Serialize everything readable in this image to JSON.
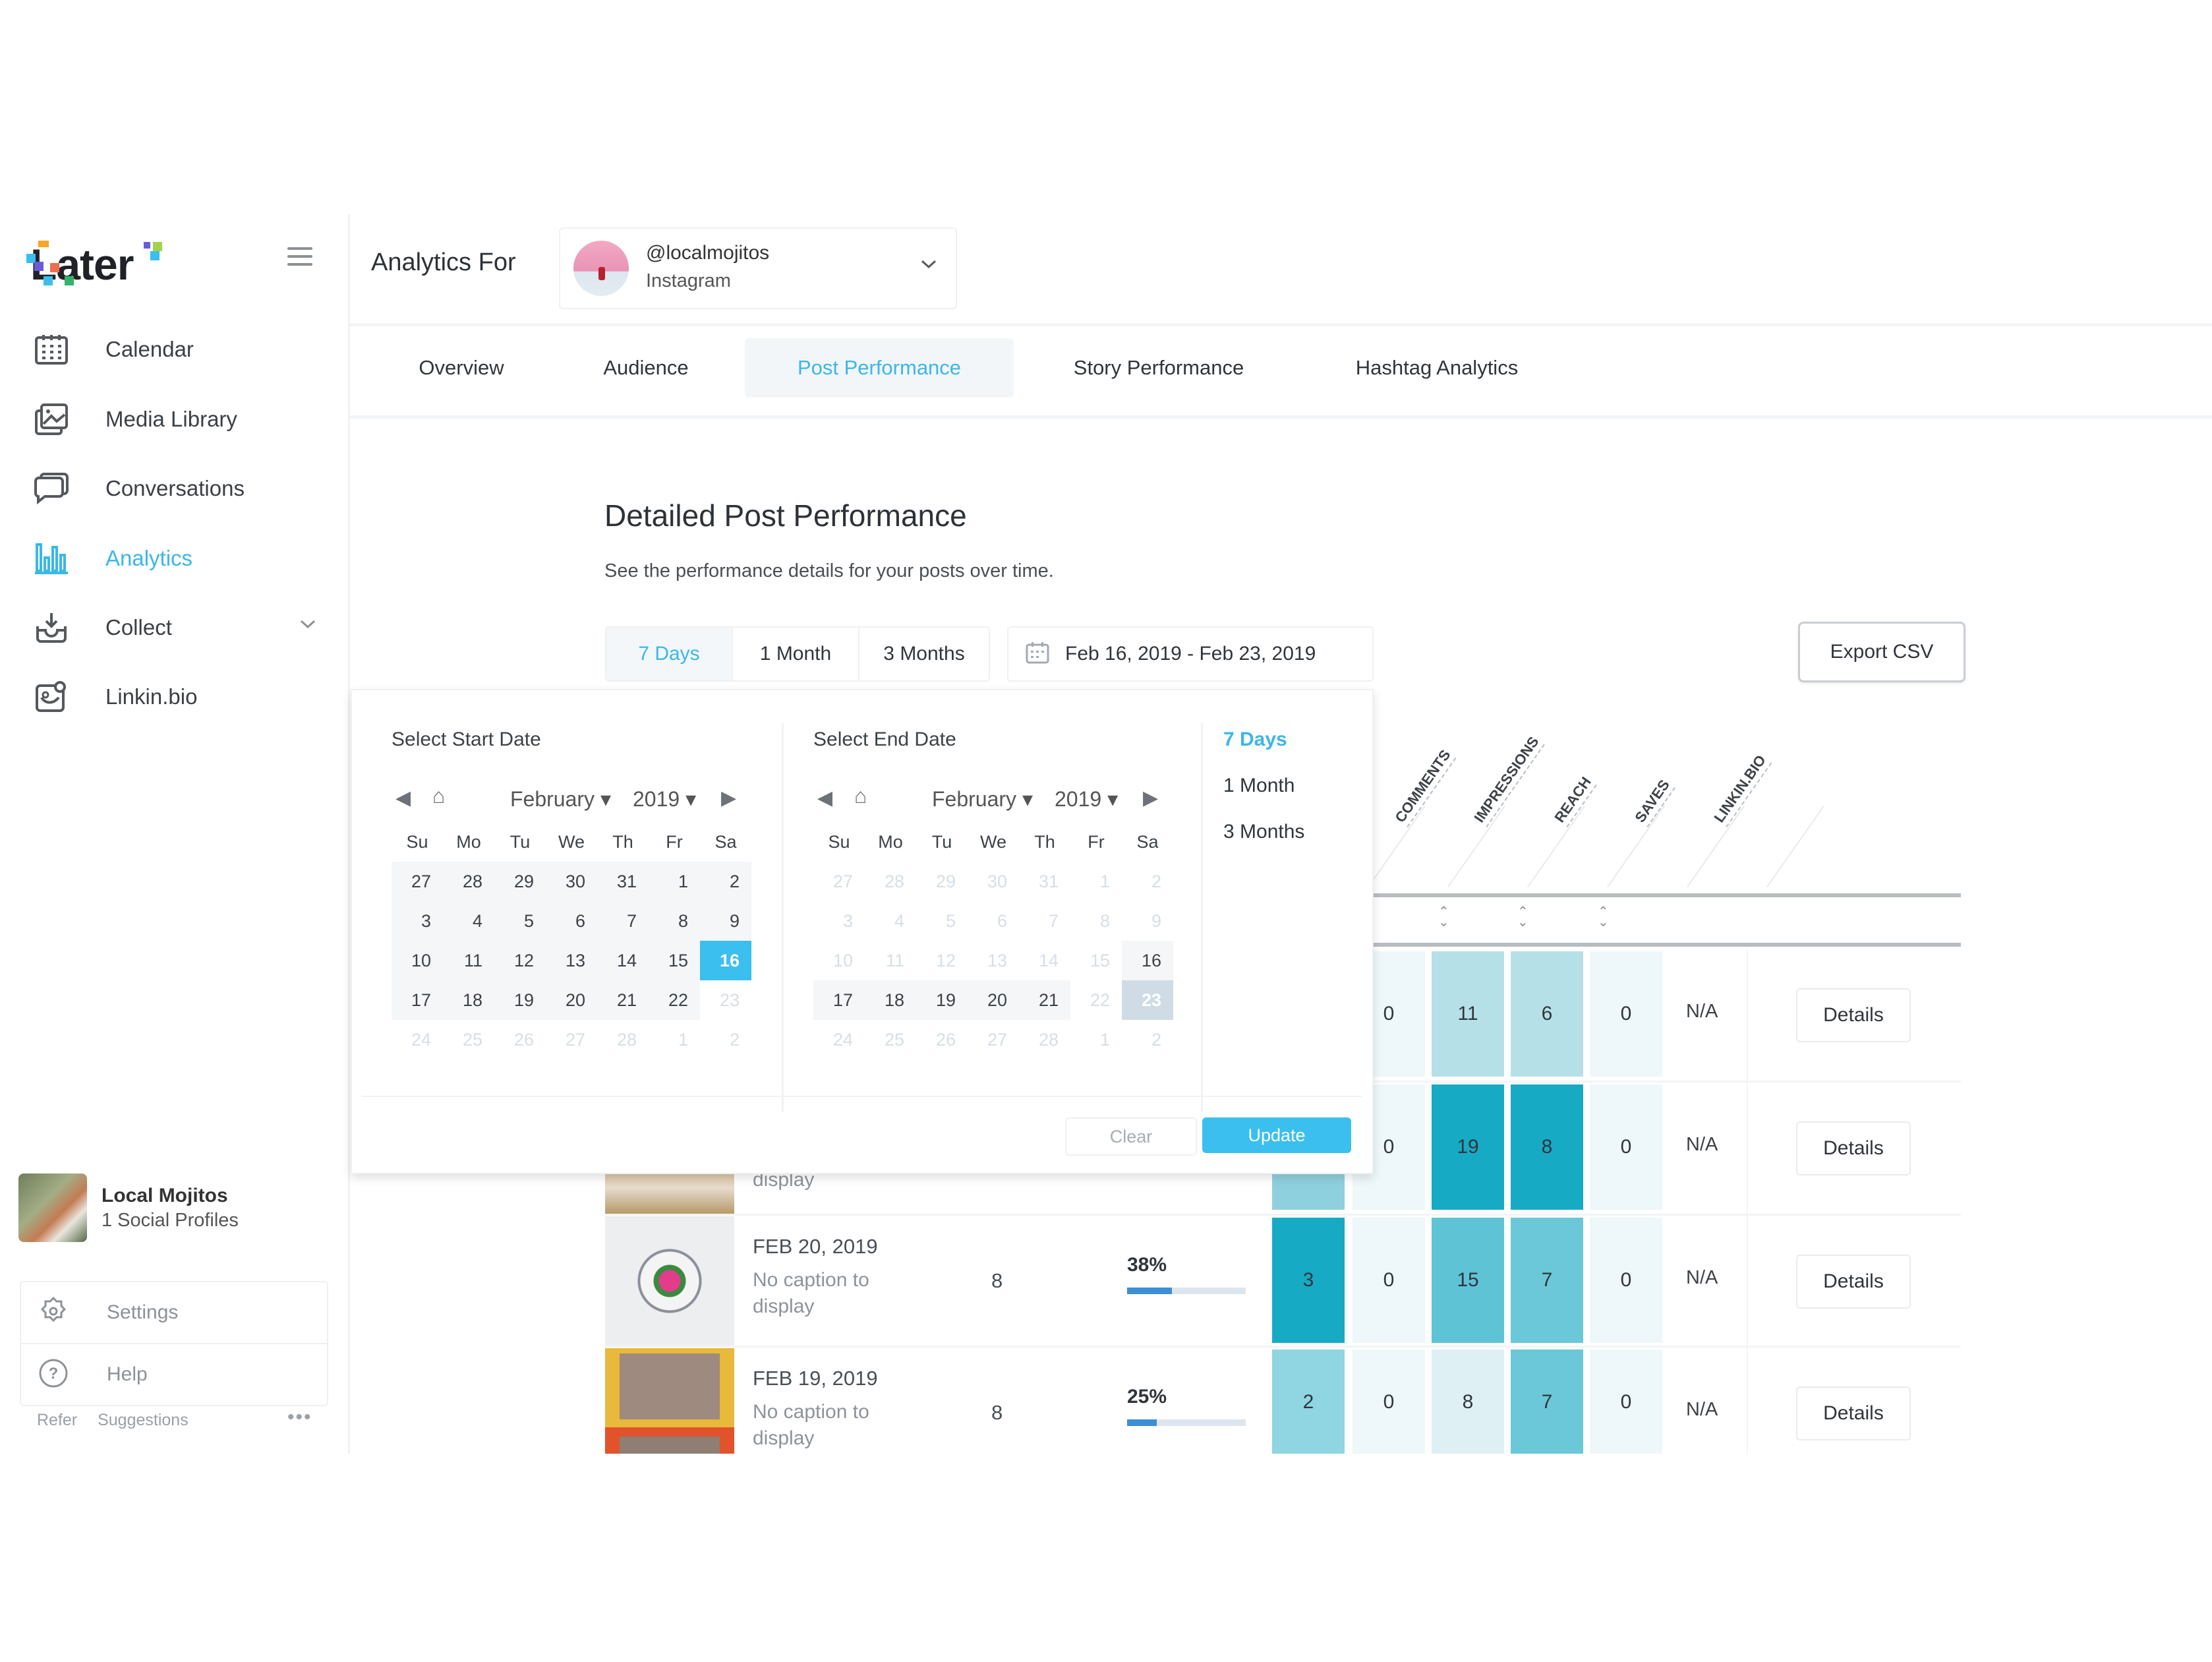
{
  "sidebar": {
    "logo": "Later",
    "items": [
      {
        "label": "Calendar",
        "icon": "calendar-icon"
      },
      {
        "label": "Media Library",
        "icon": "media-library-icon"
      },
      {
        "label": "Conversations",
        "icon": "conversations-icon"
      },
      {
        "label": "Analytics",
        "icon": "analytics-icon",
        "active": true
      },
      {
        "label": "Collect",
        "icon": "collect-icon",
        "expandable": true
      },
      {
        "label": "Linkin.bio",
        "icon": "linkinbio-icon"
      }
    ],
    "profile": {
      "name": "Local Mojitos",
      "subtitle": "1 Social Profiles"
    },
    "settings": "Settings",
    "help": "Help",
    "footer_links": [
      "Refer",
      "Suggestions"
    ],
    "more": "•••"
  },
  "header": {
    "title": "Analytics For",
    "account": {
      "handle": "@localmojitos",
      "platform": "Instagram"
    }
  },
  "tabs": [
    {
      "label": "Overview"
    },
    {
      "label": "Audience"
    },
    {
      "label": "Post Performance",
      "active": true
    },
    {
      "label": "Story Performance"
    },
    {
      "label": "Hashtag Analytics"
    }
  ],
  "content": {
    "title": "Detailed Post Performance",
    "subtitle": "See the performance details for your posts over time.",
    "range_buttons": [
      "7 Days",
      "1 Month",
      "3 Months"
    ],
    "active_range": "7 Days",
    "date_range": "Feb 16, 2019 - Feb 23, 2019",
    "export_label": "Export CSV"
  },
  "datepicker": {
    "start": {
      "title": "Select Start Date",
      "month": "February",
      "year": "2019",
      "selected": 16
    },
    "end": {
      "title": "Select End Date",
      "month": "February",
      "year": "2019",
      "selected": 23
    },
    "weekdays": [
      "Su",
      "Mo",
      "Tu",
      "We",
      "Th",
      "Fr",
      "Sa"
    ],
    "days": [
      "27",
      "28",
      "29",
      "30",
      "31",
      "1",
      "2",
      "3",
      "4",
      "5",
      "6",
      "7",
      "8",
      "9",
      "10",
      "11",
      "12",
      "13",
      "14",
      "15",
      "16",
      "17",
      "18",
      "19",
      "20",
      "21",
      "22",
      "23",
      "24",
      "25",
      "26",
      "27",
      "28",
      "1",
      "2"
    ],
    "quick_ranges": [
      "7 Days",
      "1 Month",
      "3 Months"
    ],
    "clear_label": "Clear",
    "update_label": "Update"
  },
  "table": {
    "columns": [
      "COMMENTS",
      "IMPRESSIONS",
      "REACH",
      "SAVES",
      "LINKIN.BIO"
    ],
    "rows": [
      {
        "date": "",
        "caption": "",
        "likes": "",
        "engagement": "",
        "values": [
          "",
          "0",
          "11",
          "6",
          "0"
        ],
        "linkin": "N/A",
        "action": "Details"
      },
      {
        "date": "",
        "caption": "display",
        "likes": "",
        "engagement": "",
        "values": [
          "",
          "0",
          "19",
          "8",
          "0"
        ],
        "linkin": "N/A",
        "action": "Details"
      },
      {
        "date": "FEB 20, 2019",
        "caption": "No caption to display",
        "likes": "8",
        "engagement": "38%",
        "engagement_pct": 38,
        "values": [
          "3",
          "0",
          "15",
          "7",
          "0"
        ],
        "linkin": "N/A",
        "action": "Details"
      },
      {
        "date": "FEB 19, 2019",
        "caption": "No caption to display",
        "likes": "8",
        "engagement": "25%",
        "engagement_pct": 25,
        "values": [
          "2",
          "0",
          "8",
          "7",
          "0"
        ],
        "linkin": "N/A",
        "action": "Details"
      }
    ]
  },
  "colors": {
    "accent": "#3bb7e8",
    "update_button": "#3bbfee",
    "heat_dark": "#17aac4",
    "heat_mid": "#6bc8d8",
    "heat_light": "#b6e0e8",
    "heat_pale": "#eef7fa"
  }
}
